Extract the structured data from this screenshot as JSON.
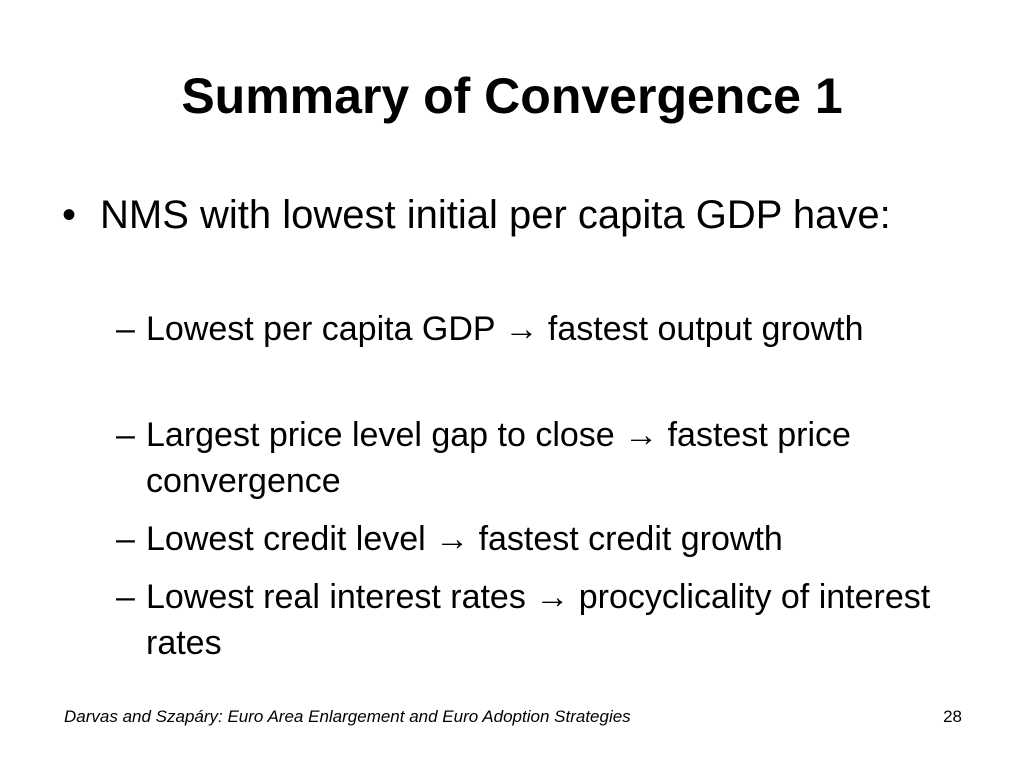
{
  "slide": {
    "title": "Summary of Convergence 1",
    "bullet": {
      "marker": "•",
      "text": "NMS with lowest initial per capita GDP have:"
    },
    "sub_marker": "–",
    "sub_items": [
      "Lowest per capita GDP → fastest output growth",
      "Largest price level gap to close → fastest price convergence",
      "Lowest credit level → fastest credit growth",
      "Lowest real interest rates → procyclicality of interest rates"
    ],
    "footer": {
      "source": "Darvas and Szapáry: Euro Area Enlargement and Euro Adoption Strategies",
      "page_number": "28"
    }
  }
}
